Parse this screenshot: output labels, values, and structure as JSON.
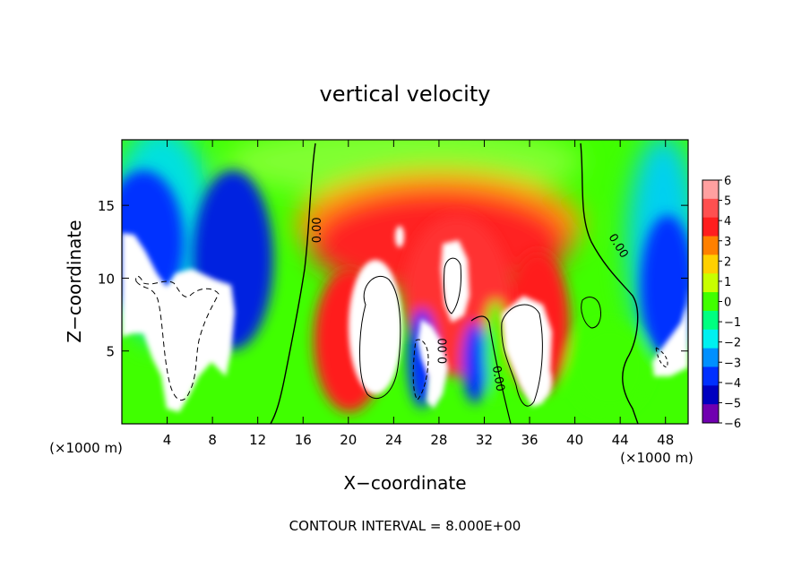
{
  "chart_data": {
    "type": "heatmap",
    "title": "vertical velocity",
    "xlabel": "X−coordinate",
    "ylabel": "Z−coordinate",
    "x_unit_left": "(×1000 m)",
    "x_unit_right": "(×1000 m)",
    "footer": "CONTOUR INTERVAL = 8.000E+00",
    "xlim": [
      0,
      50
    ],
    "ylim": [
      0,
      19.5
    ],
    "xticks": [
      4,
      8,
      12,
      16,
      20,
      24,
      28,
      32,
      36,
      40,
      44,
      48
    ],
    "yticks": [
      5,
      10,
      15
    ],
    "colorbar": {
      "levels": [
        6,
        5,
        4,
        3,
        2,
        1,
        0,
        -1,
        -2,
        -3,
        -4,
        -5,
        -6
      ],
      "labels": [
        "6",
        "5",
        "4",
        "3",
        "2",
        "1",
        "0",
        "−1",
        "−2",
        "−3",
        "−4",
        "−5",
        "−6"
      ],
      "colors": [
        "#ffa0a0",
        "#ff5050",
        "#ff1e1e",
        "#ff8000",
        "#ffd000",
        "#c8ff00",
        "#40ff00",
        "#00ff80",
        "#00f0f0",
        "#0090ff",
        "#0030ff",
        "#0000c0",
        "#7000b0"
      ]
    },
    "contour_labels": [
      {
        "text": "0.00",
        "x": 17.3,
        "y": 13.3,
        "angle": -90
      },
      {
        "text": "0.00",
        "x": 43.8,
        "y": 12.2,
        "angle": 58
      },
      {
        "text": "0.00",
        "x": 28.4,
        "y": 5.0,
        "angle": -90
      },
      {
        "text": "0.00",
        "x": 33.2,
        "y": 3.1,
        "angle": 80
      }
    ],
    "features": [
      {
        "kind": "white",
        "cx": 4.6,
        "cy": 8.8,
        "rx": 4.8,
        "ry": 3.4
      },
      {
        "kind": "white",
        "cx": 5.0,
        "cy": 4.2,
        "rx": 1.4,
        "ry": 3.2
      },
      {
        "kind": "white",
        "cx": 8.0,
        "cy": 4.6,
        "rx": 1.6,
        "ry": 1.2
      },
      {
        "kind": "white",
        "cx": 23.2,
        "cy": 6.8,
        "rx": 2.3,
        "ry": 4.2
      },
      {
        "kind": "white",
        "cx": 28.8,
        "cy": 6.4,
        "rx": 0.9,
        "ry": 4.4
      },
      {
        "kind": "white",
        "cx": 30.3,
        "cy": 9.6,
        "rx": 1.0,
        "ry": 3.0
      },
      {
        "kind": "white",
        "cx": 35.2,
        "cy": 6.2,
        "rx": 1.6,
        "ry": 2.6
      },
      {
        "kind": "white",
        "cx": 37.0,
        "cy": 3.2,
        "rx": 0.8,
        "ry": 1.4
      },
      {
        "kind": "white",
        "cx": 48.4,
        "cy": 5.8,
        "rx": 1.8,
        "ry": 2.8
      },
      {
        "kind": "white",
        "cx": 24.3,
        "cy": 13.5,
        "rx": 0.4,
        "ry": 0.9
      },
      {
        "kind": "dark",
        "cx": 2.0,
        "cy": 12.0,
        "rx": 3.0,
        "ry": 5.0
      },
      {
        "kind": "dark",
        "cx": 10.5,
        "cy": 11.5,
        "rx": 4.0,
        "ry": 6.0
      },
      {
        "kind": "dark",
        "cx": 27.0,
        "cy": 4.5,
        "rx": 1.6,
        "ry": 3.5
      },
      {
        "kind": "dark",
        "cx": 31.5,
        "cy": 3.5,
        "rx": 1.3,
        "ry": 2.5
      },
      {
        "kind": "dark",
        "cx": 47.5,
        "cy": 9.5,
        "rx": 3.0,
        "ry": 5.0
      },
      {
        "kind": "red",
        "cx": 28.5,
        "cy": 11.0,
        "rx": 10.5,
        "ry": 7.0
      },
      {
        "kind": "red",
        "cx": 21.0,
        "cy": 4.5,
        "rx": 3.5,
        "ry": 4.5
      },
      {
        "kind": "red",
        "cx": 36.0,
        "cy": 5.5,
        "rx": 3.0,
        "ry": 4.5
      }
    ]
  }
}
